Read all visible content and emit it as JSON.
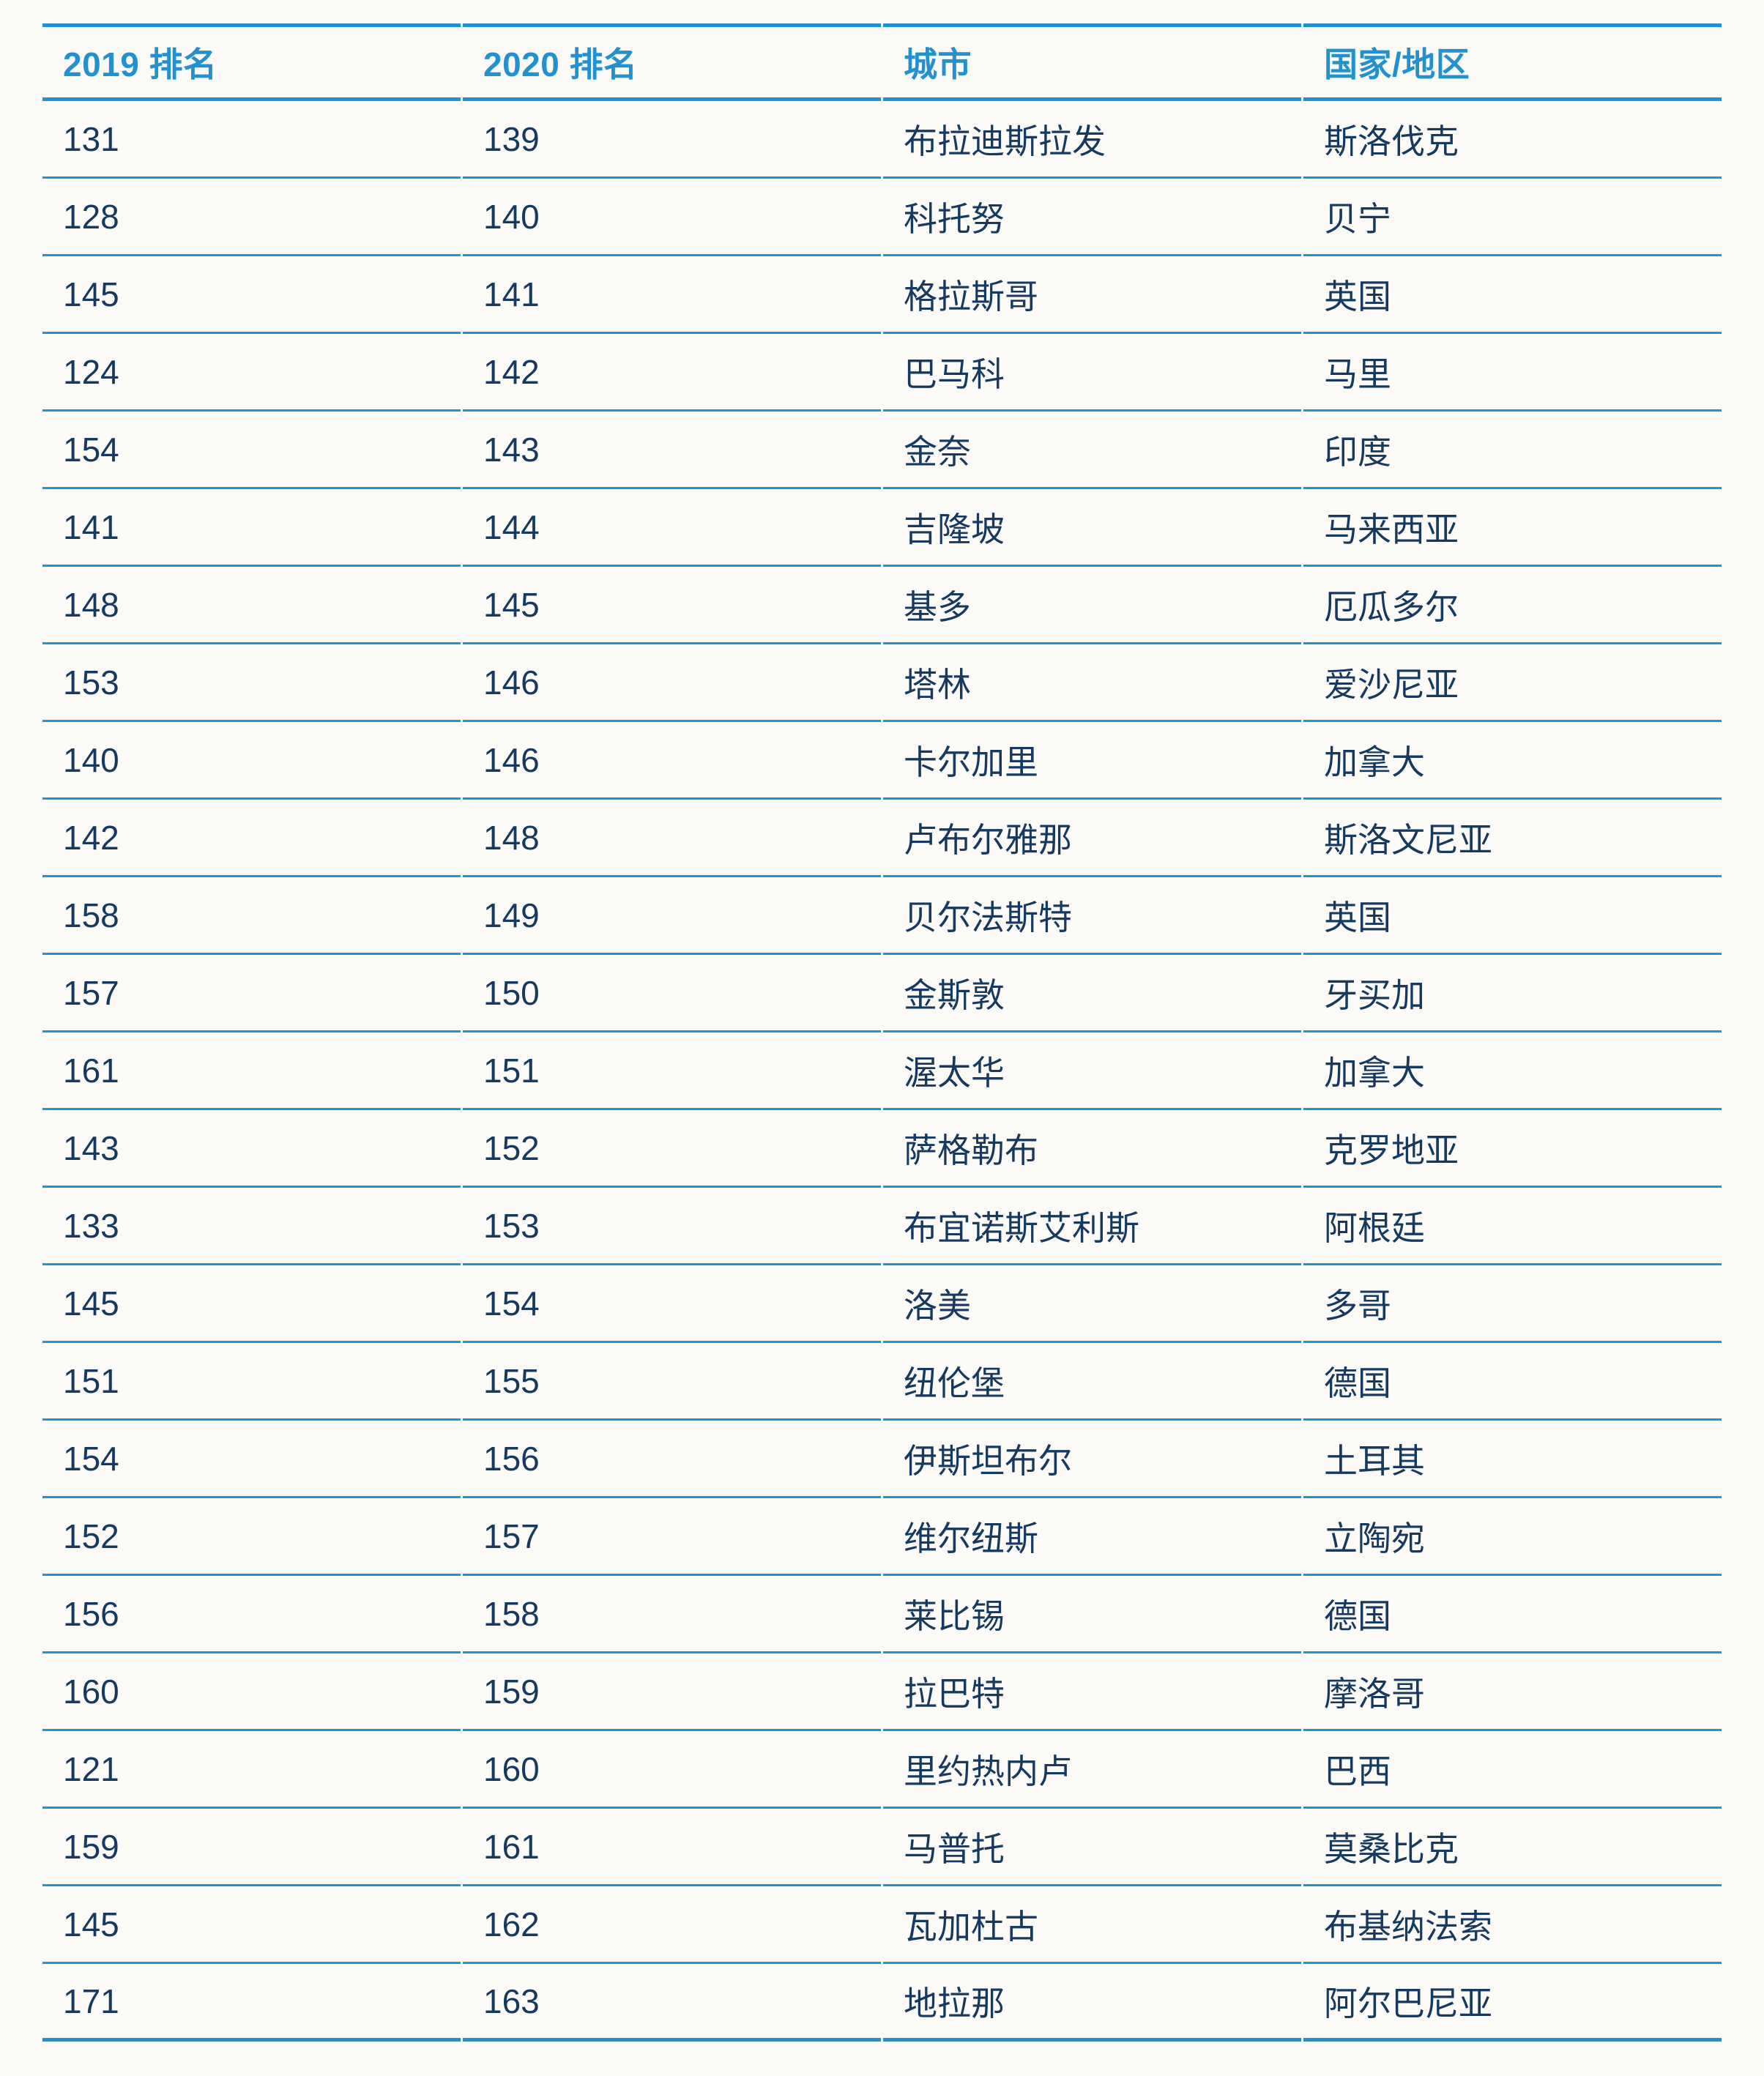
{
  "colors": {
    "accent_blue": "#2491cf",
    "text_navy": "#16395f",
    "background": "#fbfaf7"
  },
  "table": {
    "columns": [
      "2019 排名",
      "2020 排名",
      "城市",
      "国家/地区"
    ],
    "rows": [
      {
        "rank_2019": "131",
        "rank_2020": "139",
        "city": "布拉迪斯拉发",
        "country": "斯洛伐克"
      },
      {
        "rank_2019": "128",
        "rank_2020": "140",
        "city": "科托努",
        "country": "贝宁"
      },
      {
        "rank_2019": "145",
        "rank_2020": "141",
        "city": "格拉斯哥",
        "country": "英国"
      },
      {
        "rank_2019": "124",
        "rank_2020": "142",
        "city": "巴马科",
        "country": "马里"
      },
      {
        "rank_2019": "154",
        "rank_2020": "143",
        "city": "金奈",
        "country": "印度"
      },
      {
        "rank_2019": "141",
        "rank_2020": "144",
        "city": "吉隆坡",
        "country": "马来西亚"
      },
      {
        "rank_2019": "148",
        "rank_2020": "145",
        "city": "基多",
        "country": "厄瓜多尔"
      },
      {
        "rank_2019": "153",
        "rank_2020": "146",
        "city": "塔林",
        "country": "爱沙尼亚"
      },
      {
        "rank_2019": "140",
        "rank_2020": "146",
        "city": "卡尔加里",
        "country": "加拿大"
      },
      {
        "rank_2019": "142",
        "rank_2020": "148",
        "city": "卢布尔雅那",
        "country": "斯洛文尼亚"
      },
      {
        "rank_2019": "158",
        "rank_2020": "149",
        "city": "贝尔法斯特",
        "country": "英国"
      },
      {
        "rank_2019": "157",
        "rank_2020": "150",
        "city": "金斯敦",
        "country": "牙买加"
      },
      {
        "rank_2019": "161",
        "rank_2020": "151",
        "city": "渥太华",
        "country": "加拿大"
      },
      {
        "rank_2019": "143",
        "rank_2020": "152",
        "city": "萨格勒布",
        "country": "克罗地亚"
      },
      {
        "rank_2019": "133",
        "rank_2020": "153",
        "city": "布宜诺斯艾利斯",
        "country": "阿根廷"
      },
      {
        "rank_2019": "145",
        "rank_2020": "154",
        "city": "洛美",
        "country": "多哥"
      },
      {
        "rank_2019": "151",
        "rank_2020": "155",
        "city": "纽伦堡",
        "country": "德国"
      },
      {
        "rank_2019": "154",
        "rank_2020": "156",
        "city": "伊斯坦布尔",
        "country": "土耳其"
      },
      {
        "rank_2019": "152",
        "rank_2020": "157",
        "city": "维尔纽斯",
        "country": "立陶宛"
      },
      {
        "rank_2019": "156",
        "rank_2020": "158",
        "city": "莱比锡",
        "country": "德国"
      },
      {
        "rank_2019": "160",
        "rank_2020": "159",
        "city": "拉巴特",
        "country": "摩洛哥"
      },
      {
        "rank_2019": "121",
        "rank_2020": "160",
        "city": "里约热内卢",
        "country": "巴西"
      },
      {
        "rank_2019": "159",
        "rank_2020": "161",
        "city": "马普托",
        "country": "莫桑比克"
      },
      {
        "rank_2019": "145",
        "rank_2020": "162",
        "city": "瓦加杜古",
        "country": "布基纳法索"
      },
      {
        "rank_2019": "171",
        "rank_2020": "163",
        "city": "地拉那",
        "country": "阿尔巴尼亚"
      }
    ]
  }
}
